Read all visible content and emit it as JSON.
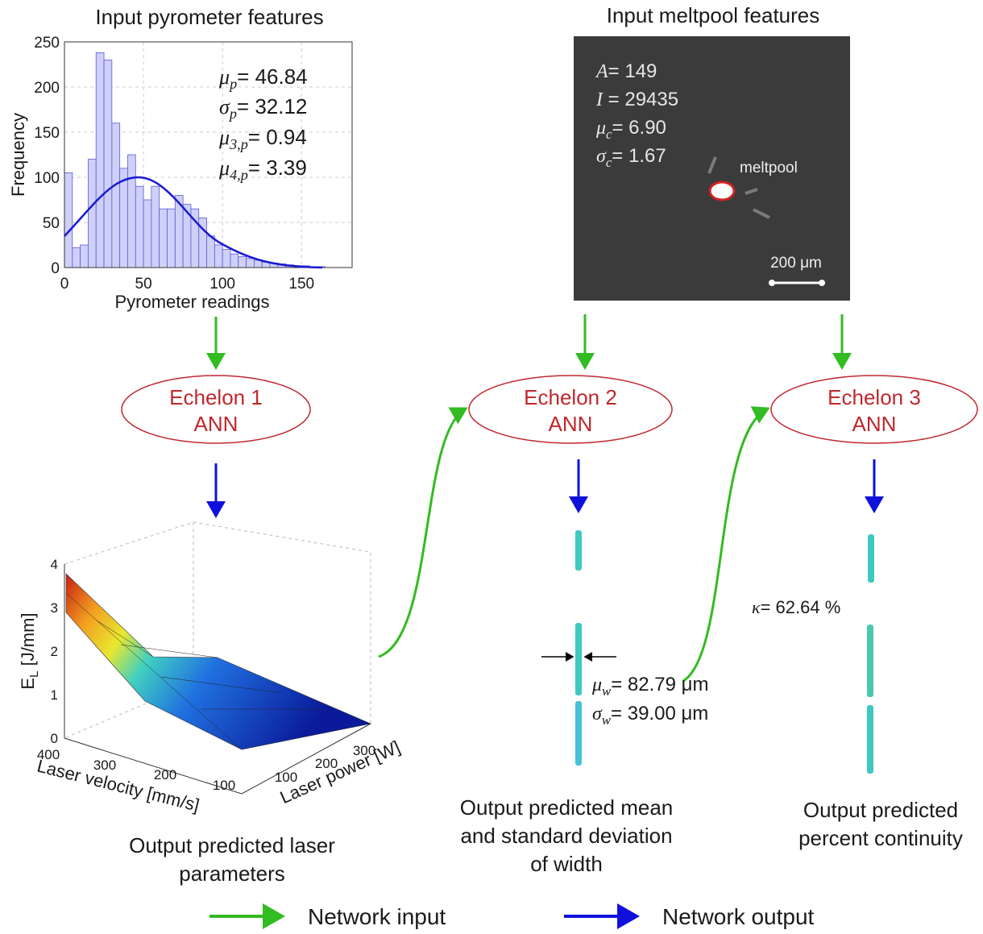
{
  "pyrometer": {
    "title": "Input pyrometer features",
    "histogram": {
      "type": "histogram",
      "x_label": "Pyrometer  readings",
      "y_label": "Frequency",
      "color": "#cfd0f7",
      "edge_color": "#5a5ae0",
      "grid": true,
      "bins": [
        0,
        5,
        10,
        15,
        20,
        25,
        30,
        35,
        40,
        45,
        50,
        55,
        60,
        65,
        70,
        75,
        80,
        85,
        90,
        95,
        100,
        105,
        110,
        115,
        120,
        125,
        130,
        135,
        140,
        145,
        150,
        155,
        160,
        165
      ],
      "counts": [
        105,
        22,
        25,
        120,
        238,
        230,
        160,
        110,
        125,
        90,
        75,
        90,
        65,
        65,
        80,
        70,
        65,
        55,
        35,
        25,
        20,
        15,
        12,
        10,
        8,
        6,
        5,
        4,
        3,
        2,
        2,
        1,
        1
      ],
      "xlim": [
        0,
        182
      ],
      "ylim": [
        0,
        250
      ],
      "xticks": [
        0,
        50,
        100,
        150
      ],
      "yticks": [
        0,
        50,
        100,
        150,
        200,
        250
      ]
    },
    "stats": [
      {
        "symbol": "μ",
        "sub": "p",
        "value": "= 46.84"
      },
      {
        "symbol": "σ",
        "sub": "p",
        "value": "= 32.12"
      },
      {
        "symbol": "μ",
        "sub": "3,p",
        "value": "= 0.94"
      },
      {
        "symbol": "μ",
        "sub": "4,p",
        "value": "= 3.39"
      }
    ]
  },
  "meltpool": {
    "title": "Input meltpool features",
    "stats": [
      {
        "symbol": "A",
        "sub": "",
        "value": "= 149"
      },
      {
        "symbol": "I",
        "sub": "",
        "value": " = 29435"
      },
      {
        "symbol": "μ",
        "sub": "c",
        "value": "= 6.90"
      },
      {
        "symbol": "σ",
        "sub": "c",
        "value": "= 1.67"
      }
    ],
    "label": "meltpool",
    "scale": "200 μm"
  },
  "echelons": [
    {
      "name": "Echelon 1",
      "sub": "ANN"
    },
    {
      "name": "Echelon 2",
      "sub": "ANN"
    },
    {
      "name": "Echelon 3",
      "sub": "ANN"
    }
  ],
  "surface": {
    "z_label": "E",
    "z_label_sub": "L",
    "z_label_unit": " [J/mm]",
    "z_ticks": [
      0,
      1,
      2,
      3,
      4
    ],
    "x_label": "Laser velocity [mm/s]",
    "x_ticks": [
      400,
      300,
      200,
      100
    ],
    "y_label": "Laser power [W]",
    "y_ticks": [
      100,
      200,
      300
    ]
  },
  "width_stats": [
    {
      "symbol": "μ",
      "sub": "w",
      "value": "= 82.79 μm"
    },
    {
      "symbol": "σ",
      "sub": "w",
      "value": "= 39.00 μm"
    }
  ],
  "continuity": {
    "symbol": "κ",
    "value": "= 62.64 %"
  },
  "captions": [
    [
      "Output predicted laser",
      "parameters"
    ],
    [
      "Output predicted mean",
      "and standard deviation",
      "of width"
    ],
    [
      "Output predicted",
      "percent continuity"
    ]
  ],
  "legend": [
    "Network input",
    "Network output"
  ]
}
